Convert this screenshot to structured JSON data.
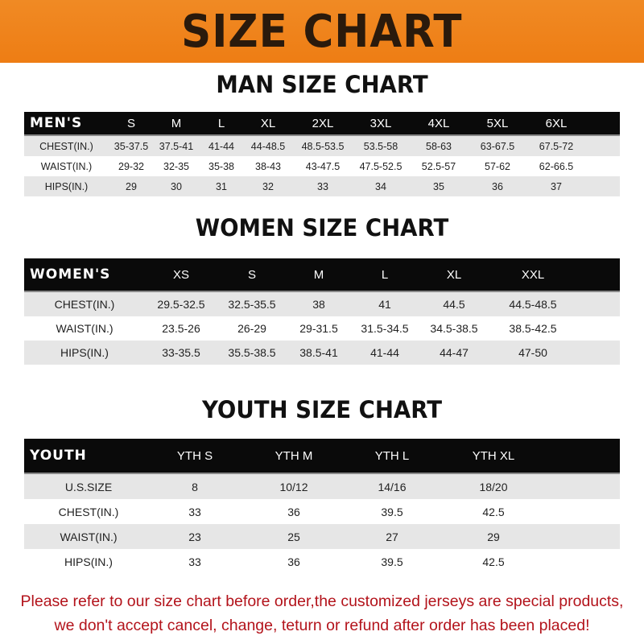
{
  "banner_title": "SIZE CHART",
  "colors": {
    "banner": "#ee7d14",
    "header_row": "#0a0a0a",
    "note_text": "#b3131b"
  },
  "men": {
    "title": "MAN SIZE CHART",
    "header_label": "MEN'S",
    "sizes": [
      "S",
      "M",
      "L",
      "XL",
      "2XL",
      "3XL",
      "4XL",
      "5XL",
      "6XL"
    ],
    "rows": [
      {
        "label": "CHEST(IN.)",
        "values": [
          "35-37.5",
          "37.5-41",
          "41-44",
          "44-48.5",
          "48.5-53.5",
          "53.5-58",
          "58-63",
          "63-67.5",
          "67.5-72"
        ]
      },
      {
        "label": "WAIST(IN.)",
        "values": [
          "29-32",
          "32-35",
          "35-38",
          "38-43",
          "43-47.5",
          "47.5-52.5",
          "52.5-57",
          "57-62",
          "62-66.5"
        ]
      },
      {
        "label": "HIPS(IN.)",
        "values": [
          "29",
          "30",
          "31",
          "32",
          "33",
          "34",
          "35",
          "36",
          "37"
        ]
      }
    ]
  },
  "women": {
    "title": "WOMEN SIZE CHART",
    "header_label": "WOMEN'S",
    "sizes": [
      "XS",
      "S",
      "M",
      "L",
      "XL",
      "XXL"
    ],
    "rows": [
      {
        "label": "CHEST(IN.)",
        "values": [
          "29.5-32.5",
          "32.5-35.5",
          "38",
          "41",
          "44.5",
          "44.5-48.5"
        ]
      },
      {
        "label": "WAIST(IN.)",
        "values": [
          "23.5-26",
          "26-29",
          "29-31.5",
          "31.5-34.5",
          "34.5-38.5",
          "38.5-42.5"
        ]
      },
      {
        "label": "HIPS(IN.)",
        "values": [
          "33-35.5",
          "35.5-38.5",
          "38.5-41",
          "41-44",
          "44-47",
          "47-50"
        ]
      }
    ]
  },
  "youth": {
    "title": "YOUTH SIZE CHART",
    "header_label": "YOUTH",
    "sizes": [
      "YTH S",
      "YTH M",
      "YTH L",
      "YTH XL"
    ],
    "rows": [
      {
        "label": "U.S.SIZE",
        "values": [
          "8",
          "10/12",
          "14/16",
          "18/20"
        ]
      },
      {
        "label": "CHEST(IN.)",
        "values": [
          "33",
          "36",
          "39.5",
          "42.5"
        ]
      },
      {
        "label": "WAIST(IN.)",
        "values": [
          "23",
          "25",
          "27",
          "29"
        ]
      },
      {
        "label": "HIPS(IN.)",
        "values": [
          "33",
          "36",
          "39.5",
          "42.5"
        ]
      }
    ]
  },
  "note": {
    "line1": "Please refer to our size chart before order,the customized jerseys are special products,",
    "line2": "we don't accept cancel, change, teturn or refund after order has been placed!"
  }
}
